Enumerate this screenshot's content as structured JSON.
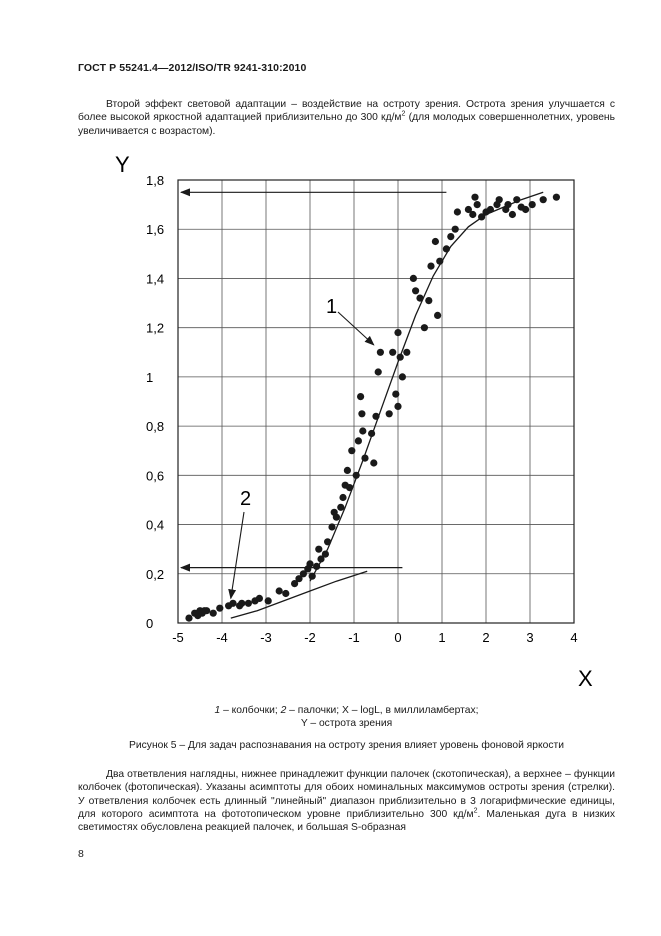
{
  "header": {
    "standard": "ГОСТ Р 55241.4—2012/ISO/TR 9241-310:2010"
  },
  "intro_paragraph": {
    "before_sup": "Второй эффект световой адаптации – воздействие на остроту зрения. Острота зрения улучшается с более высокой яркостной адаптацией приблизительно до 300 кд/м",
    "sup": "2",
    "after_sup": " (для молодых совершеннолетних, уровень увеличивается с возрастом)."
  },
  "chart_data": {
    "type": "scatter",
    "xlabel": "X",
    "ylabel": "Y",
    "xlim": [
      -5,
      4
    ],
    "ylim": [
      0,
      1.8
    ],
    "grid": true,
    "x_ticks": [
      -5,
      -4,
      -3,
      -2,
      -1,
      0,
      1,
      2,
      3,
      4
    ],
    "x_tick_labels": [
      "-5",
      "-4",
      "-3",
      "-2",
      "-1",
      "0",
      "1",
      "2",
      "3",
      "4"
    ],
    "y_ticks": [
      0,
      0.2,
      0.4,
      0.6,
      0.8,
      1.0,
      1.2,
      1.4,
      1.6,
      1.8
    ],
    "y_tick_labels": [
      "0",
      "0,2",
      "0,4",
      "0,6",
      "0,8",
      "1",
      "1,2",
      "1,4",
      "1,6",
      "1,8"
    ],
    "annotations": [
      {
        "text": "1",
        "points_to": [
          -0.55,
          1.13
        ]
      },
      {
        "text": "2",
        "points_to": [
          -3.8,
          0.1
        ]
      }
    ],
    "asymptotes": [
      {
        "y": 1.75,
        "from_x": 1.1,
        "to_x": -5
      },
      {
        "y": 0.225,
        "from_x": 0.1,
        "to_x": -5
      }
    ],
    "fit_curves": [
      {
        "name": "1",
        "x": [
          -2.0,
          -1.6,
          -1.2,
          -0.8,
          -0.4,
          0.0,
          0.4,
          0.8,
          1.2,
          1.6,
          2.0,
          2.4,
          2.8,
          3.3
        ],
        "y": [
          0.17,
          0.3,
          0.47,
          0.66,
          0.86,
          1.06,
          1.25,
          1.41,
          1.53,
          1.61,
          1.66,
          1.69,
          1.72,
          1.75
        ]
      },
      {
        "name": "2",
        "x": [
          -3.8,
          -3.2,
          -2.6,
          -2.0,
          -1.4,
          -0.7
        ],
        "y": [
          0.02,
          0.05,
          0.09,
          0.13,
          0.17,
          0.21
        ]
      }
    ],
    "series": [
      {
        "points": [
          [
            -4.75,
            0.02
          ],
          [
            -4.62,
            0.04
          ],
          [
            -4.55,
            0.03
          ],
          [
            -4.5,
            0.05
          ],
          [
            -4.45,
            0.04
          ],
          [
            -4.4,
            0.05
          ],
          [
            -4.35,
            0.05
          ],
          [
            -4.2,
            0.04
          ],
          [
            -4.05,
            0.06
          ],
          [
            -3.85,
            0.07
          ],
          [
            -3.75,
            0.08
          ],
          [
            -3.6,
            0.07
          ],
          [
            -3.55,
            0.08
          ],
          [
            -3.4,
            0.08
          ],
          [
            -3.25,
            0.09
          ],
          [
            -3.15,
            0.1
          ],
          [
            -2.95,
            0.09
          ],
          [
            -2.7,
            0.13
          ],
          [
            -2.55,
            0.12
          ],
          [
            -2.35,
            0.16
          ],
          [
            -2.25,
            0.18
          ],
          [
            -2.15,
            0.2
          ],
          [
            -2.05,
            0.22
          ],
          [
            -2.0,
            0.24
          ],
          [
            -1.95,
            0.19
          ],
          [
            -1.85,
            0.23
          ],
          [
            -1.8,
            0.3
          ],
          [
            -1.75,
            0.26
          ],
          [
            -1.65,
            0.28
          ],
          [
            -1.6,
            0.33
          ],
          [
            -1.5,
            0.39
          ],
          [
            -1.45,
            0.45
          ],
          [
            -1.4,
            0.43
          ],
          [
            -1.3,
            0.47
          ],
          [
            -1.25,
            0.51
          ],
          [
            -1.2,
            0.56
          ],
          [
            -1.15,
            0.62
          ],
          [
            -1.1,
            0.55
          ],
          [
            -1.05,
            0.7
          ],
          [
            -0.95,
            0.6
          ],
          [
            -0.9,
            0.74
          ],
          [
            -0.85,
            0.92
          ],
          [
            -0.82,
            0.85
          ],
          [
            -0.8,
            0.78
          ],
          [
            -0.75,
            0.67
          ],
          [
            -0.6,
            0.77
          ],
          [
            -0.55,
            0.65
          ],
          [
            -0.5,
            0.84
          ],
          [
            -0.4,
            1.1
          ],
          [
            -0.45,
            1.02
          ],
          [
            -0.2,
            0.85
          ],
          [
            -0.12,
            1.1
          ],
          [
            -0.05,
            0.93
          ],
          [
            0.0,
            0.88
          ],
          [
            0.0,
            1.18
          ],
          [
            0.05,
            1.08
          ],
          [
            0.1,
            1.0
          ],
          [
            0.2,
            1.1
          ],
          [
            0.35,
            1.4
          ],
          [
            0.4,
            1.35
          ],
          [
            0.5,
            1.32
          ],
          [
            0.6,
            1.2
          ],
          [
            0.7,
            1.31
          ],
          [
            0.75,
            1.45
          ],
          [
            0.85,
            1.55
          ],
          [
            0.9,
            1.25
          ],
          [
            0.95,
            1.47
          ],
          [
            1.1,
            1.52
          ],
          [
            1.2,
            1.57
          ],
          [
            1.3,
            1.6
          ],
          [
            1.35,
            1.67
          ],
          [
            1.6,
            1.68
          ],
          [
            1.7,
            1.66
          ],
          [
            1.75,
            1.73
          ],
          [
            1.8,
            1.7
          ],
          [
            1.9,
            1.65
          ],
          [
            2.0,
            1.67
          ],
          [
            2.1,
            1.68
          ],
          [
            2.25,
            1.7
          ],
          [
            2.3,
            1.72
          ],
          [
            2.45,
            1.68
          ],
          [
            2.5,
            1.7
          ],
          [
            2.6,
            1.66
          ],
          [
            2.7,
            1.72
          ],
          [
            2.8,
            1.69
          ],
          [
            2.9,
            1.68
          ],
          [
            3.05,
            1.7
          ],
          [
            3.3,
            1.72
          ],
          [
            3.6,
            1.73
          ]
        ]
      }
    ]
  },
  "legend_caption": {
    "line1_part1": "1",
    "line1_part2": " – колбочки; ",
    "line1_part3": "2",
    "line1_part4": " – палочки; X – logL, в миллиламбертах;",
    "line2": "Y – острота зрения"
  },
  "figure_caption": "Рисунок 5 – Для задач распознавания на остроту зрения влияет уровень фоновой яркости",
  "body_paragraph": {
    "before_sup": "Два ответвления наглядны, нижнее принадлежит функции палочек (скотопическая), а верхнее – функции колбочек (фотопическая). Указаны асимптоты для обоих номинальных максимумов остроты зрения (стрелки). У ответвления колбочек есть длинный \"линейный\" диапазон приблизительно в 3 логарифмические единицы, для которого асимптота на фототопическом уровне приблизительно 300 кд/м",
    "sup": "2",
    "after_sup": ". Маленькая дуга в низких светимостях обусловлена реакцией палочек, и большая S-образная"
  },
  "page_number": "8"
}
